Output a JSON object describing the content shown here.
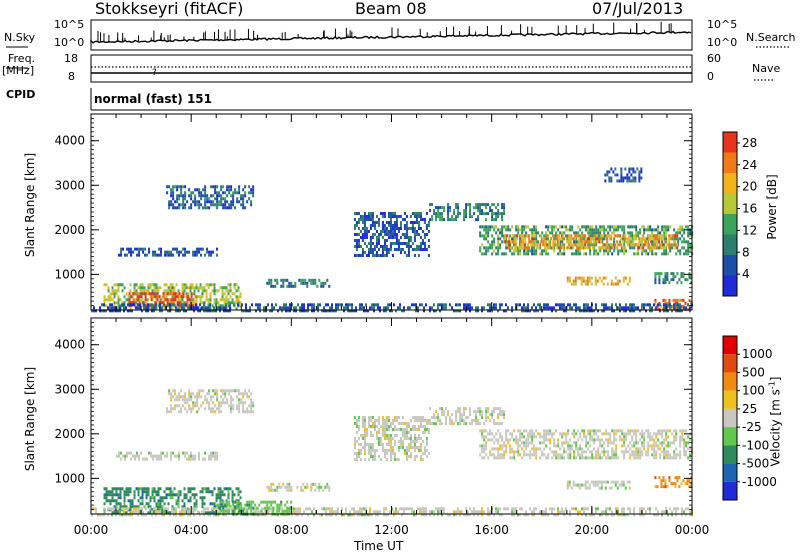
{
  "header": {
    "title": "Stokkseyri (fitACF)",
    "beam": "Beam 08",
    "date": "07/Jul/2013"
  },
  "top_panels": {
    "nsky_label": "N.Sky",
    "nsky_ticks": [
      "10^5",
      "10^0"
    ],
    "nsearch_ticks": [
      "10^5",
      "10^0"
    ],
    "nsearch_label": "N.Search",
    "freq_label": "Freq.",
    "freq_unit": "[MHz]",
    "freq_ticks": [
      "18",
      "8"
    ],
    "nave_ticks": [
      "60",
      "0"
    ],
    "nave_label": "Nave",
    "cpid_label": "CPID",
    "mode_text": "normal (fast) 151"
  },
  "chart_data": [
    {
      "type": "heatmap",
      "name": "power",
      "ylabel": "Slant Range [km]",
      "xlabel": "Time UT",
      "x_ticks": [
        "00:00",
        "04:00",
        "08:00",
        "12:00",
        "16:00",
        "20:00",
        "00:00"
      ],
      "y_ticks": [
        "1000",
        "2000",
        "3000",
        "4000"
      ],
      "ylim": [
        200,
        4600
      ],
      "xlim_hours": [
        0,
        24
      ],
      "colorbar_label": "Power [dB]",
      "colorbar_ticks": [
        "4",
        "8",
        "12",
        "16",
        "20",
        "24",
        "28"
      ],
      "colorbar_range": [
        0,
        30
      ],
      "colors": [
        "#1f2bd6",
        "#1d4fa8",
        "#2e7d6e",
        "#3aa55a",
        "#b5c93a",
        "#f2b21b",
        "#f07a1a",
        "#e6341d"
      ],
      "regions": [
        {
          "t": [
            0.5,
            6.0
          ],
          "r": [
            200,
            800
          ],
          "level": 16
        },
        {
          "t": [
            1.5,
            4.2
          ],
          "r": [
            300,
            600
          ],
          "level": 27
        },
        {
          "t": [
            3.0,
            6.5
          ],
          "r": [
            2500,
            3000
          ],
          "level": 7
        },
        {
          "t": [
            1.0,
            5.0
          ],
          "r": [
            1450,
            1600
          ],
          "level": 6
        },
        {
          "t": [
            7.0,
            9.5
          ],
          "r": [
            700,
            900
          ],
          "level": 9
        },
        {
          "t": [
            10.5,
            13.5
          ],
          "r": [
            1400,
            2400
          ],
          "level": 6
        },
        {
          "t": [
            13.5,
            16.5
          ],
          "r": [
            2200,
            2600
          ],
          "level": 10
        },
        {
          "t": [
            15.5,
            24.0
          ],
          "r": [
            1450,
            2100
          ],
          "level": 12
        },
        {
          "t": [
            16.5,
            23.5
          ],
          "r": [
            1600,
            1900
          ],
          "level": 22
        },
        {
          "t": [
            19.0,
            21.5
          ],
          "r": [
            750,
            950
          ],
          "level": 21
        },
        {
          "t": [
            22.5,
            24.0
          ],
          "r": [
            200,
            450
          ],
          "level": 26
        },
        {
          "t": [
            22.5,
            24.0
          ],
          "r": [
            800,
            1050
          ],
          "level": 10
        },
        {
          "t": [
            0.0,
            24.0
          ],
          "r": [
            200,
            350
          ],
          "level": 6
        },
        {
          "t": [
            20.5,
            22.0
          ],
          "r": [
            3100,
            3400
          ],
          "level": 5
        }
      ]
    },
    {
      "type": "heatmap",
      "name": "velocity",
      "ylabel": "Slant Range [km]",
      "xlabel": "Time UT",
      "x_ticks": [
        "00:00",
        "04:00",
        "08:00",
        "12:00",
        "16:00",
        "20:00",
        "00:00"
      ],
      "y_ticks": [
        "1000",
        "2000",
        "3000",
        "4000"
      ],
      "ylim": [
        200,
        4600
      ],
      "xlim_hours": [
        0,
        24
      ],
      "colorbar_label": "Velocity [m s",
      "colorbar_superscript": "-1",
      "colorbar_ticks": [
        "1000",
        "500",
        "100",
        "25",
        "-25",
        "-100",
        "-500",
        "-1000"
      ],
      "colors": [
        "#1f2bd6",
        "#1d64b0",
        "#2e8a5a",
        "#60c84a",
        "#c8c8c0",
        "#f0c020",
        "#f08a10",
        "#e04a10",
        "#e00000"
      ],
      "regions": [
        {
          "t": [
            0.5,
            6.0
          ],
          "r": [
            200,
            800
          ],
          "color": 2
        },
        {
          "t": [
            3.0,
            6.5
          ],
          "r": [
            2500,
            3000
          ],
          "color": 4
        },
        {
          "t": [
            1.0,
            5.0
          ],
          "r": [
            1450,
            1600
          ],
          "color": 4
        },
        {
          "t": [
            7.0,
            9.5
          ],
          "r": [
            700,
            900
          ],
          "color": 4
        },
        {
          "t": [
            10.5,
            13.5
          ],
          "r": [
            1400,
            2400
          ],
          "color": 4
        },
        {
          "t": [
            13.5,
            16.5
          ],
          "r": [
            2200,
            2600
          ],
          "color": 4
        },
        {
          "t": [
            15.5,
            24.0
          ],
          "r": [
            1450,
            2100
          ],
          "color": 4
        },
        {
          "t": [
            19.0,
            21.5
          ],
          "r": [
            750,
            950
          ],
          "color": 4
        },
        {
          "t": [
            22.5,
            24.0
          ],
          "r": [
            800,
            1050
          ],
          "color": 6
        },
        {
          "t": [
            0.0,
            24.0
          ],
          "r": [
            200,
            350
          ],
          "color": 4
        },
        {
          "t": [
            5.0,
            8.0
          ],
          "r": [
            200,
            500
          ],
          "color": 3
        }
      ]
    }
  ]
}
